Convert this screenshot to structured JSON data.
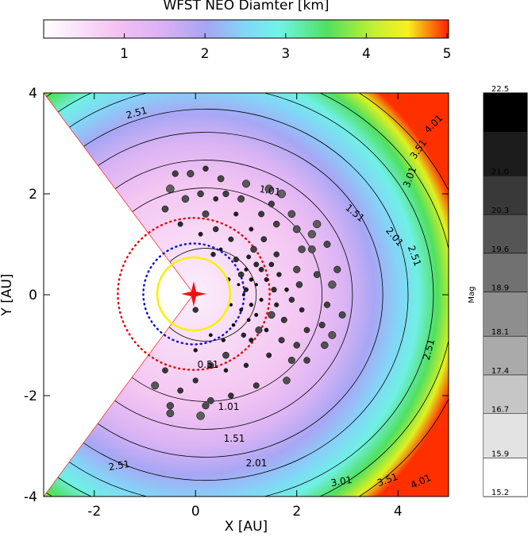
{
  "chart_data": [
    {
      "type": "scatter",
      "xlabel": "X [AU]",
      "ylabel": "Y [AU]",
      "xlim": [
        -3,
        5
      ],
      "ylim": [
        -4,
        4
      ],
      "xticks": [
        -2,
        0,
        2,
        4
      ],
      "yticks": [
        -4,
        -2,
        0,
        2,
        4
      ],
      "contour_labels": [
        "2.51",
        "1.01",
        "1.51",
        "2.01",
        "2.51",
        "3.01",
        "3.51",
        "4.01",
        "0.51",
        "1.01",
        "1.51",
        "2.01",
        "2.51",
        "2.51",
        "3.01",
        "3.51",
        "4.01"
      ],
      "x": [
        1.0,
        1.1,
        0.9,
        1.2,
        1.05,
        0.95,
        1.15,
        1.3,
        0.8,
        1.25,
        1.4,
        1.5,
        1.6,
        1.7,
        1.8,
        2.0,
        2.1,
        2.3,
        2.5,
        2.7,
        0.7,
        0.6,
        0.4,
        0.3,
        0.2,
        0.0,
        -0.2,
        -0.3,
        -0.5,
        -0.5,
        0.5,
        1.0,
        1.5,
        1.9,
        2.4,
        2.6,
        2.2,
        1.8,
        1.2,
        0.7,
        0.3,
        -0.1,
        0.2,
        -0.4,
        0.1,
        0.4,
        0.8,
        1.1,
        1.35,
        1.45,
        1.0,
        0.6,
        0.5,
        0.55,
        0.85,
        0.9,
        1.0,
        1.1,
        1.2,
        1.05,
        1.3,
        1.4,
        1.55,
        1.65,
        1.75,
        1.9,
        2.05,
        2.2,
        2.4,
        2.6,
        2.8,
        2.9,
        2.55,
        2.3,
        2.0,
        1.6,
        1.3,
        0.9,
        0.6,
        1.7,
        -0.6,
        -0.8,
        -0.6,
        -0.3,
        0.1,
        0.0,
        0.3,
        0.35,
        0.75,
        0.65,
        0.7,
        1.5,
        1.6,
        1.2,
        1.1,
        0.95,
        2.0,
        2.1,
        1.45,
        -0.5,
        0.0,
        0.2,
        0.1,
        1.9,
        2.7
      ],
      "y": [
        0.1,
        -0.2,
        0.4,
        0.6,
        -0.5,
        -0.8,
        0.9,
        -0.1,
        0.7,
        -0.7,
        0.3,
        -0.4,
        0.8,
        -0.9,
        0.1,
        0.5,
        -0.3,
        0.9,
        -0.6,
        0.2,
        1.1,
        -1.2,
        1.3,
        -1.4,
        1.6,
        -1.7,
        1.9,
        -1.9,
        2.1,
        -2.2,
        2.3,
        2.2,
        1.8,
        1.6,
        1.4,
        1.0,
        -1.3,
        -1.7,
        -1.8,
        -2.0,
        -2.1,
        2.4,
        2.5,
        2.4,
        -2.4,
        1.9,
        1.6,
        1.3,
        1.1,
        -1.2,
        -1.4,
        -1.5,
        0.9,
        -0.9,
        0.2,
        -0.3,
        0.5,
        -0.9,
        0.2,
        0.75,
        0.5,
        -0.7,
        0.1,
        0.4,
        -0.5,
        -0.1,
        0.2,
        -0.7,
        0.4,
        -0.2,
        0.5,
        -0.4,
        -1.0,
        1.2,
        1.3,
        1.4,
        1.6,
        1.9,
        2.0,
        2.0,
        1.7,
        -1.8,
        -1.5,
        1.4,
        1.2,
        -1.1,
        -0.8,
        0.8,
        -0.6,
        0.3,
        -0.2,
        0.6,
        -0.2,
        -0.4,
        0.3,
        0.0,
        -1.0,
        0.9,
        2.1,
        -2.35,
        -0.3,
        -2.2,
        2.0,
        -1.3,
        -0.8
      ],
      "mag": [
        21.5,
        21.8,
        20.9,
        21.2,
        22.0,
        21.4,
        20.6,
        21.9,
        21.1,
        20.4,
        21.6,
        20.2,
        21.0,
        20.8,
        21.7,
        20.3,
        21.3,
        20.1,
        20.7,
        19.9,
        21.2,
        20.5,
        21.0,
        20.6,
        20.4,
        21.1,
        20.2,
        20.9,
        19.8,
        20.3,
        20.5,
        20.0,
        20.7,
        20.1,
        19.9,
        20.4,
        20.6,
        20.2,
        20.8,
        21.0,
        20.5,
        20.3,
        21.0,
        20.7,
        19.8,
        21.3,
        21.5,
        21.6,
        20.9,
        21.2,
        21.4,
        21.7,
        22.1,
        21.8,
        22.3,
        22.0,
        21.9,
        21.5,
        22.2,
        21.6,
        21.3,
        21.7,
        21.1,
        21.4,
        20.8,
        21.0,
        20.6,
        20.9,
        20.5,
        20.7,
        20.3,
        20.4,
        20.2,
        19.9,
        20.1,
        20.6,
        20.8,
        20.4,
        20.7,
        19.7,
        20.5,
        20.0,
        20.9,
        21.2,
        21.6,
        21.8,
        22.0,
        21.4,
        22.1,
        21.7,
        22.2,
        21.3,
        21.5,
        21.9,
        21.8,
        22.3,
        20.6,
        20.2,
        19.9,
        20.1,
        21.0,
        20.3,
        20.6,
        20.4,
        20.0
      ]
    },
    {
      "type": "colorbar",
      "title": "WFST NEO Diamter [km]",
      "xlim": [
        0,
        5
      ],
      "xticks": [
        1,
        2,
        3,
        4,
        5
      ]
    },
    {
      "type": "colorbar",
      "label": "Mag",
      "ylim": [
        15.2,
        22.5
      ],
      "yticks": [
        15.2,
        15.9,
        16.7,
        17.4,
        18.1,
        18.9,
        19.6,
        20.3,
        {
          "value": 21,
          "label": "21.0"
        },
        21.8,
        22.5
      ]
    }
  ]
}
